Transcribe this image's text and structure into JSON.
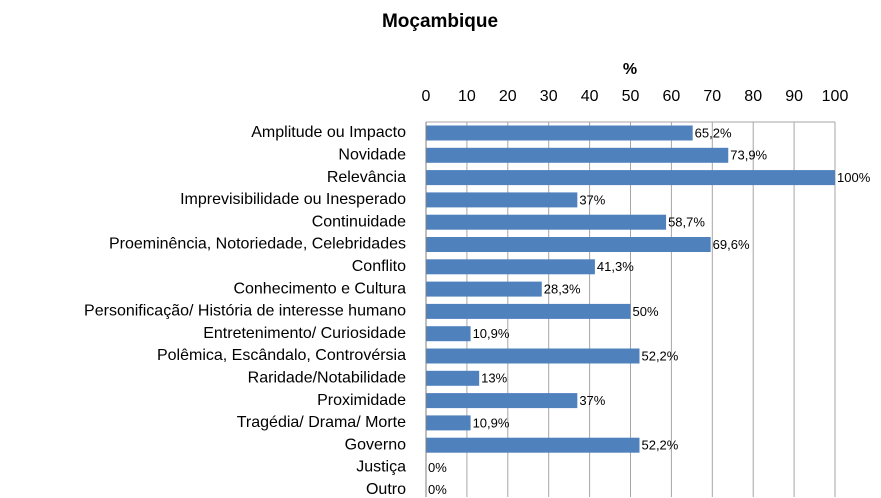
{
  "chart_data": {
    "type": "bar",
    "orientation": "horizontal",
    "title": "Moçambique",
    "x_label": "%",
    "categories": [
      "Amplitude ou Impacto",
      "Novidade",
      "Relevância",
      "Imprevisibilidade ou Inesperado",
      "Continuidade",
      "Proeminência, Notoriedade, Celebridades",
      "Conflito",
      "Conhecimento e Cultura",
      "Personificação/ História de interesse humano",
      "Entretenimento/ Curiosidade",
      "Polêmica, Escândalo, Controvérsia",
      "Raridade/Notabilidade",
      "Proximidade",
      "Tragédia/ Drama/ Morte",
      "Governo",
      "Justiça",
      "Outro"
    ],
    "values": [
      65.2,
      73.9,
      100,
      37,
      58.7,
      69.6,
      41.3,
      28.3,
      50,
      10.9,
      52.2,
      13,
      37,
      10.9,
      52.2,
      0,
      0
    ],
    "value_labels": [
      "65,2%",
      "73,9%",
      "100%",
      "37%",
      "58,7%",
      "69,6%",
      "41,3%",
      "28,3%",
      "50%",
      "10,9%",
      "52,2%",
      "13%",
      "37%",
      "10,9%",
      "52,2%",
      "0%",
      "0%"
    ],
    "color": "#4f81bd",
    "xlim": [
      0,
      100
    ],
    "xticks": [
      0,
      10,
      20,
      30,
      40,
      50,
      60,
      70,
      80,
      90,
      100
    ],
    "grid": true
  }
}
